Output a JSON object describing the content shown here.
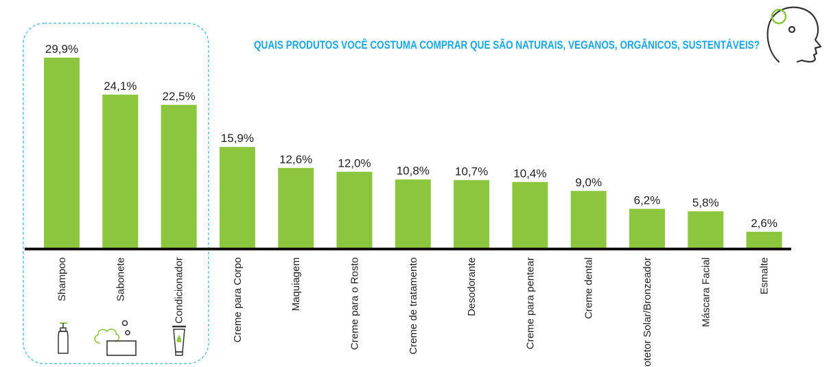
{
  "title": "QUAIS PRODUTOS VOCÊ COSTUMA COMPRAR QUE SÃO NATURAIS, VEGANOS, ORGÂNICOS, SUSTENTÁVEIS?",
  "colors": {
    "bar": "#8cc63f",
    "title": "#1aa6e0",
    "axis": "#111111",
    "highlight_border": "#5bc0de",
    "icon_stroke": "#333333",
    "head_accent": "#8cc63f"
  },
  "icons": [
    "head-profile-icon",
    "shampoo-bottle-icon",
    "soap-bar-icon",
    "conditioner-tube-icon"
  ],
  "highlight": {
    "categories": [
      "Shampoo",
      "Sabonete",
      "Condicionador"
    ]
  },
  "chart_data": {
    "type": "bar",
    "title": "QUAIS PRODUTOS VOCÊ COSTUMA COMPRAR QUE SÃO NATURAIS, VEGANOS, ORGÂNICOS, SUSTENTÁVEIS?",
    "categories": [
      "Shampoo",
      "Sabonete",
      "Condicionador",
      "Creme para Corpo",
      "Maquiagem",
      "Creme para o Rosto",
      "Creme de tratamento",
      "Desodorante",
      "Creme para pentear",
      "Creme dental",
      "Protetor Solar/Bronzeador",
      "Máscara Facial",
      "Esmalte"
    ],
    "values": [
      29.9,
      24.1,
      22.5,
      15.9,
      12.6,
      12.0,
      10.8,
      10.7,
      10.4,
      9.0,
      6.2,
      5.8,
      2.6
    ],
    "value_labels": [
      "29,9%",
      "24,1%",
      "22,5%",
      "15,9%",
      "12,6%",
      "12,0%",
      "10,8%",
      "10,7%",
      "10,4%",
      "9,0%",
      "6,2%",
      "5,8%",
      "2,6%"
    ],
    "unit": "%",
    "ylim": [
      0,
      30
    ],
    "grid": false,
    "xlabel": "",
    "ylabel": ""
  }
}
